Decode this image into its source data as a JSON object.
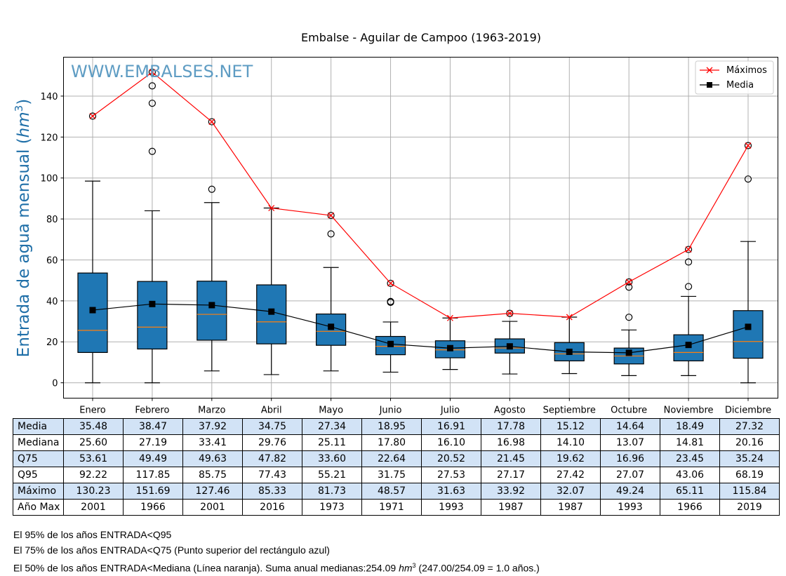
{
  "colors": {
    "box_fill": "#1f77b4",
    "median_line": "#ff7f0e",
    "max_line": "#ff0000",
    "mean_line": "#000000",
    "grid": "#b0b0b0",
    "watermark": "#5e9cc3",
    "ylabel": "#1f6fa8",
    "table_shade": "#d2e3f6"
  },
  "chart_data": {
    "type": "box",
    "title": "Embalse - Aguilar de Campoo (1963-2019)",
    "watermark": "WWW.EMBALSES.NET",
    "ylabel_prefix": "Entrada de agua mensual (",
    "ylabel_unit": "hm",
    "ylabel_exp": "3",
    "ylabel_suffix": ")",
    "ylim": [
      -7.5,
      159
    ],
    "yticks": [
      0,
      20,
      40,
      60,
      80,
      100,
      120,
      140
    ],
    "grid": true,
    "legend_position": "top-right",
    "legend": [
      {
        "label": "Máximos",
        "marker": "x",
        "color": "#ff0000"
      },
      {
        "label": "Media",
        "marker": "square",
        "color": "#000000"
      }
    ],
    "categories": [
      "Enero",
      "Febrero",
      "Marzo",
      "Abril",
      "Mayo",
      "Junio",
      "Julio",
      "Agosto",
      "Septiembre",
      "Octubre",
      "Noviembre",
      "Diciembre"
    ],
    "boxes": [
      {
        "whislo": 0.0,
        "q1": 14.8,
        "med": 25.6,
        "q3": 53.61,
        "whishi": 98.5,
        "fliers": [
          130.23
        ]
      },
      {
        "whislo": 0.0,
        "q1": 16.5,
        "med": 27.19,
        "q3": 49.49,
        "whishi": 84.0,
        "fliers": [
          113.0,
          136.5,
          145.0,
          151.69
        ]
      },
      {
        "whislo": 5.8,
        "q1": 20.8,
        "med": 33.41,
        "q3": 49.63,
        "whishi": 88.0,
        "fliers": [
          94.5,
          127.46
        ]
      },
      {
        "whislo": 4.0,
        "q1": 19.0,
        "med": 29.76,
        "q3": 47.82,
        "whishi": 85.33,
        "fliers": []
      },
      {
        "whislo": 5.8,
        "q1": 18.3,
        "med": 25.11,
        "q3": 33.6,
        "whishi": 56.3,
        "fliers": [
          72.7,
          81.73
        ]
      },
      {
        "whislo": 5.2,
        "q1": 13.7,
        "med": 17.8,
        "q3": 22.64,
        "whishi": 29.7,
        "fliers": [
          39.3,
          39.7,
          48.57
        ]
      },
      {
        "whislo": 6.5,
        "q1": 12.2,
        "med": 16.1,
        "q3": 20.52,
        "whishi": 31.63,
        "fliers": []
      },
      {
        "whislo": 4.3,
        "q1": 14.5,
        "med": 16.98,
        "q3": 21.45,
        "whishi": 30.0,
        "fliers": [
          33.92
        ]
      },
      {
        "whislo": 4.5,
        "q1": 10.7,
        "med": 14.1,
        "q3": 19.62,
        "whishi": 32.07,
        "fliers": []
      },
      {
        "whislo": 3.5,
        "q1": 9.2,
        "med": 13.07,
        "q3": 16.96,
        "whishi": 25.8,
        "fliers": [
          32.0,
          46.7,
          49.24
        ]
      },
      {
        "whislo": 3.5,
        "q1": 10.7,
        "med": 14.81,
        "q3": 23.45,
        "whishi": 42.2,
        "fliers": [
          47.0,
          59.0,
          65.11
        ]
      },
      {
        "whislo": 0.0,
        "q1": 12.0,
        "med": 20.16,
        "q3": 35.24,
        "whishi": 69.0,
        "fliers": [
          99.5,
          115.84
        ]
      }
    ],
    "series": [
      {
        "name": "Máximos",
        "values": [
          130.23,
          151.69,
          127.46,
          85.33,
          81.73,
          48.57,
          31.63,
          33.92,
          32.07,
          49.24,
          65.11,
          115.84
        ]
      },
      {
        "name": "Media",
        "values": [
          35.48,
          38.47,
          37.92,
          34.75,
          27.34,
          18.95,
          16.91,
          17.78,
          15.12,
          14.64,
          18.49,
          27.32
        ]
      }
    ]
  },
  "table": {
    "rows": [
      {
        "label": "Media",
        "values": [
          "35.48",
          "38.47",
          "37.92",
          "34.75",
          "27.34",
          "18.95",
          "16.91",
          "17.78",
          "15.12",
          "14.64",
          "18.49",
          "27.32"
        ],
        "shaded": true
      },
      {
        "label": "Mediana",
        "values": [
          "25.60",
          "27.19",
          "33.41",
          "29.76",
          "25.11",
          "17.80",
          "16.10",
          "16.98",
          "14.10",
          "13.07",
          "14.81",
          "20.16"
        ],
        "shaded": false
      },
      {
        "label": "Q75",
        "values": [
          "53.61",
          "49.49",
          "49.63",
          "47.82",
          "33.60",
          "22.64",
          "20.52",
          "21.45",
          "19.62",
          "16.96",
          "23.45",
          "35.24"
        ],
        "shaded": true
      },
      {
        "label": "Q95",
        "values": [
          "92.22",
          "117.85",
          "85.75",
          "77.43",
          "55.21",
          "31.75",
          "27.53",
          "27.17",
          "27.42",
          "27.07",
          "43.06",
          "68.19"
        ],
        "shaded": false
      },
      {
        "label": "Máximo",
        "values": [
          "130.23",
          "151.69",
          "127.46",
          "85.33",
          "81.73",
          "48.57",
          "31.63",
          "33.92",
          "32.07",
          "49.24",
          "65.11",
          "115.84"
        ],
        "shaded": true
      },
      {
        "label": "Año Max",
        "values": [
          "2001",
          "1966",
          "2001",
          "2016",
          "1973",
          "1971",
          "1993",
          "1987",
          "1987",
          "1993",
          "1966",
          "2019"
        ],
        "shaded": false
      }
    ]
  },
  "notes": {
    "line1": "El 95% de los años ENTRADA<Q95",
    "line2": "El 75% de los años ENTRADA<Q75 (Punto superior del rectángulo azul)",
    "line3_pre": "El 50% de los años ENTRADA<Mediana (Línea naranja). Suma anual medianas:254.09 ",
    "line3_unit": "hm",
    "line3_exp": "3",
    "line3_post": " (247.00/254.09 = 1.0 años.)"
  }
}
